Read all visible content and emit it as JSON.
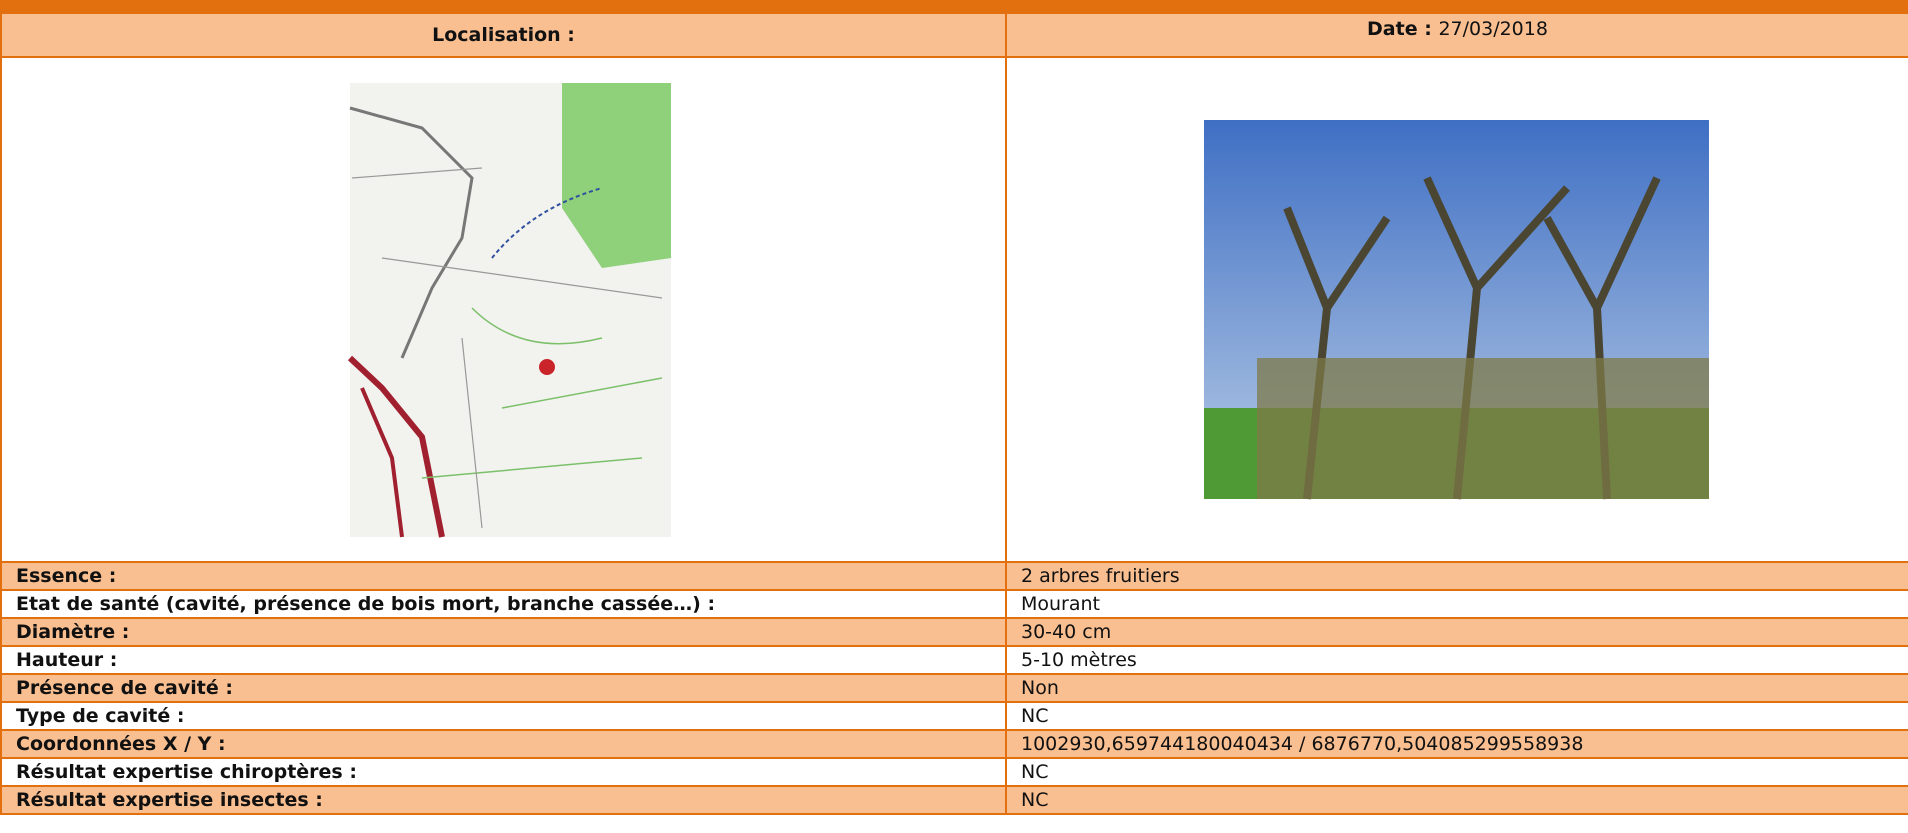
{
  "header": {
    "localisation": "Localisation :",
    "date_label": "Date :",
    "date_value": "27/03/2018"
  },
  "rows": [
    [
      "Essence :",
      "2 arbres fruitiers"
    ],
    [
      "Etat de santé (cavité, présence de bois mort, branche cassée…) :",
      "Mourant"
    ],
    [
      "Diamètre :",
      "30-40 cm"
    ],
    [
      "Hauteur :",
      "5-10 mètres"
    ],
    [
      "Présence de cavité :",
      "Non"
    ],
    [
      "Type de cavité :",
      "NC"
    ],
    [
      "Coordonnées X / Y :",
      "1002930,659744180040434 / 6876770,504085299558938"
    ],
    [
      "Résultat expertise chiroptères :",
      "NC"
    ],
    [
      "Résultat expertise insectes :",
      "NC"
    ]
  ]
}
